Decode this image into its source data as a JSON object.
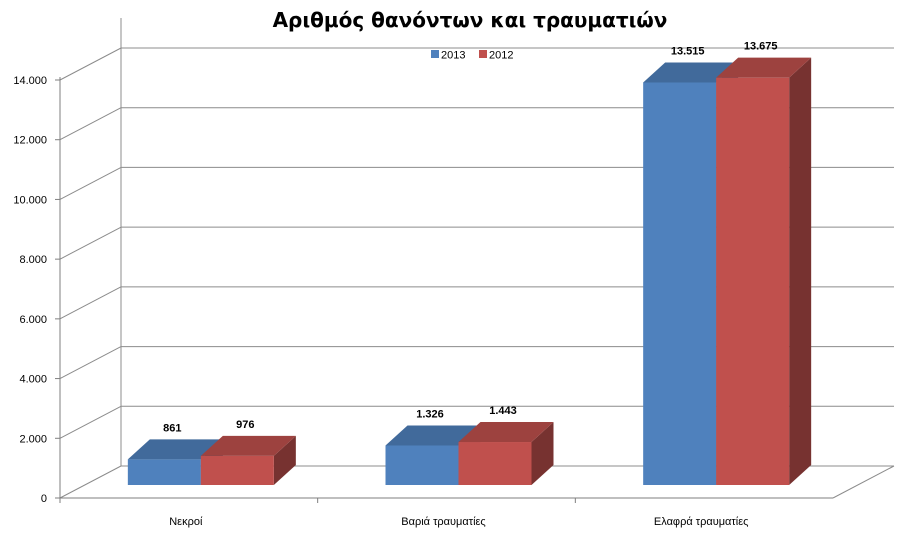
{
  "chart_data": {
    "type": "bar",
    "title": "Αριθμός θανόντων και τραυματιών",
    "xlabel": "",
    "ylabel": "",
    "ylim": [
      0,
      14000
    ],
    "y_ticks": [
      "0",
      "2.000",
      "4.000",
      "6.000",
      "8.000",
      "10.000",
      "12.000",
      "14.000"
    ],
    "y_tick_values": [
      0,
      2000,
      4000,
      6000,
      8000,
      10000,
      12000,
      14000
    ],
    "categories": [
      "Νεκροί",
      "Βαριά τραυματίες",
      "Ελαφρά τραυματίες"
    ],
    "series": [
      {
        "name": "2013",
        "values": [
          861,
          1326,
          13515
        ],
        "labels": [
          "861",
          "1.326",
          "13.515"
        ],
        "color": "#4f81bd"
      },
      {
        "name": "2012",
        "values": [
          976,
          1443,
          13675
        ],
        "labels": [
          "976",
          "1.443",
          "13.675"
        ],
        "color": "#c0504d"
      }
    ],
    "grid": true,
    "legend_position": "top-center",
    "style": "3d-clustered-column"
  }
}
